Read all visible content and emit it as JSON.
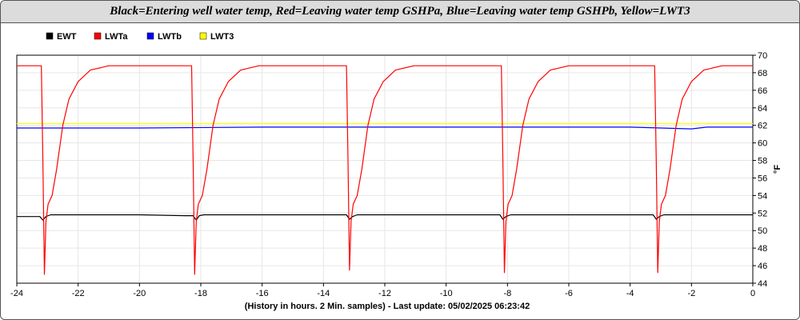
{
  "chart_data": {
    "type": "line",
    "title": "Black=Entering well water temp, Red=Leaving water temp GSHPa, Blue=Leaving water temp GSHPb, Yellow=LWT3",
    "xlabel": "(History in hours. 2 Min. samples) - Last update: 05/02/2025 06:23:42",
    "ylabel": "°F",
    "xlim": [
      -24,
      0
    ],
    "ylim": [
      44,
      70
    ],
    "x_ticks": [
      -24,
      -22,
      -20,
      -18,
      -16,
      -14,
      -12,
      -10,
      -8,
      -6,
      -4,
      -2,
      0
    ],
    "y_ticks": [
      44,
      46,
      48,
      50,
      52,
      54,
      56,
      58,
      60,
      62,
      64,
      66,
      68,
      70
    ],
    "grid": true,
    "legend_position": "top-left",
    "series": [
      {
        "name": "EWT",
        "color": "#000000",
        "points": [
          [
            -24,
            51.6
          ],
          [
            -23.5,
            51.6
          ],
          [
            -23.25,
            51.6
          ],
          [
            -23.15,
            51.2
          ],
          [
            -23.05,
            51.6
          ],
          [
            -22.9,
            51.8
          ],
          [
            -20,
            51.8
          ],
          [
            -18.5,
            51.7
          ],
          [
            -18.25,
            51.7
          ],
          [
            -18.15,
            51.2
          ],
          [
            -18.05,
            51.7
          ],
          [
            -17.9,
            51.8
          ],
          [
            -14,
            51.8
          ],
          [
            -13.25,
            51.8
          ],
          [
            -13.15,
            51.3
          ],
          [
            -13.05,
            51.6
          ],
          [
            -12.9,
            51.8
          ],
          [
            -10,
            51.8
          ],
          [
            -8.25,
            51.8
          ],
          [
            -8.15,
            51.3
          ],
          [
            -8.05,
            51.6
          ],
          [
            -7.9,
            51.8
          ],
          [
            -6,
            51.8
          ],
          [
            -3.25,
            51.8
          ],
          [
            -3.15,
            51.3
          ],
          [
            -3.05,
            51.6
          ],
          [
            -2.9,
            51.8
          ],
          [
            0,
            51.8
          ]
        ]
      },
      {
        "name": "LWTa",
        "color": "#ff0000",
        "points": [
          [
            -24,
            68.8
          ],
          [
            -23.2,
            68.8
          ],
          [
            -23.15,
            58.0
          ],
          [
            -23.1,
            45.0
          ],
          [
            -23.05,
            51.0
          ],
          [
            -22.98,
            53.0
          ],
          [
            -22.85,
            54.0
          ],
          [
            -22.7,
            57.0
          ],
          [
            -22.5,
            62.0
          ],
          [
            -22.3,
            65.0
          ],
          [
            -22.0,
            67.0
          ],
          [
            -21.6,
            68.3
          ],
          [
            -21.0,
            68.8
          ],
          [
            -18.3,
            68.8
          ],
          [
            -18.25,
            58.0
          ],
          [
            -18.2,
            45.0
          ],
          [
            -18.15,
            51.0
          ],
          [
            -18.08,
            53.0
          ],
          [
            -17.95,
            54.0
          ],
          [
            -17.8,
            57.0
          ],
          [
            -17.6,
            62.0
          ],
          [
            -17.4,
            65.0
          ],
          [
            -17.1,
            67.0
          ],
          [
            -16.7,
            68.3
          ],
          [
            -16.1,
            68.8
          ],
          [
            -13.25,
            68.8
          ],
          [
            -13.2,
            58.0
          ],
          [
            -13.15,
            45.5
          ],
          [
            -13.1,
            51.0
          ],
          [
            -13.03,
            53.0
          ],
          [
            -12.9,
            54.0
          ],
          [
            -12.75,
            57.0
          ],
          [
            -12.55,
            62.0
          ],
          [
            -12.35,
            65.0
          ],
          [
            -12.05,
            67.0
          ],
          [
            -11.65,
            68.3
          ],
          [
            -11.05,
            68.8
          ],
          [
            -8.2,
            68.8
          ],
          [
            -8.15,
            58.0
          ],
          [
            -8.1,
            45.2
          ],
          [
            -8.05,
            51.0
          ],
          [
            -7.98,
            53.0
          ],
          [
            -7.85,
            54.0
          ],
          [
            -7.7,
            57.0
          ],
          [
            -7.5,
            62.0
          ],
          [
            -7.3,
            65.0
          ],
          [
            -7.0,
            67.0
          ],
          [
            -6.6,
            68.3
          ],
          [
            -6.0,
            68.8
          ],
          [
            -3.2,
            68.8
          ],
          [
            -3.15,
            58.0
          ],
          [
            -3.1,
            45.2
          ],
          [
            -3.05,
            51.0
          ],
          [
            -2.98,
            53.0
          ],
          [
            -2.85,
            54.0
          ],
          [
            -2.7,
            57.0
          ],
          [
            -2.5,
            62.0
          ],
          [
            -2.3,
            65.0
          ],
          [
            -2.0,
            67.0
          ],
          [
            -1.6,
            68.3
          ],
          [
            -1.0,
            68.8
          ],
          [
            0,
            68.8
          ]
        ]
      },
      {
        "name": "LWTb",
        "color": "#0000ff",
        "points": [
          [
            -24,
            61.7
          ],
          [
            -20,
            61.7
          ],
          [
            -16,
            61.8
          ],
          [
            -12,
            61.8
          ],
          [
            -8,
            61.8
          ],
          [
            -4,
            61.8
          ],
          [
            -2,
            61.6
          ],
          [
            -1.5,
            61.8
          ],
          [
            0,
            61.8
          ]
        ]
      },
      {
        "name": "LWT3",
        "color": "#ffff00",
        "points": [
          [
            -24,
            62.2
          ],
          [
            0,
            62.2
          ]
        ]
      }
    ]
  }
}
